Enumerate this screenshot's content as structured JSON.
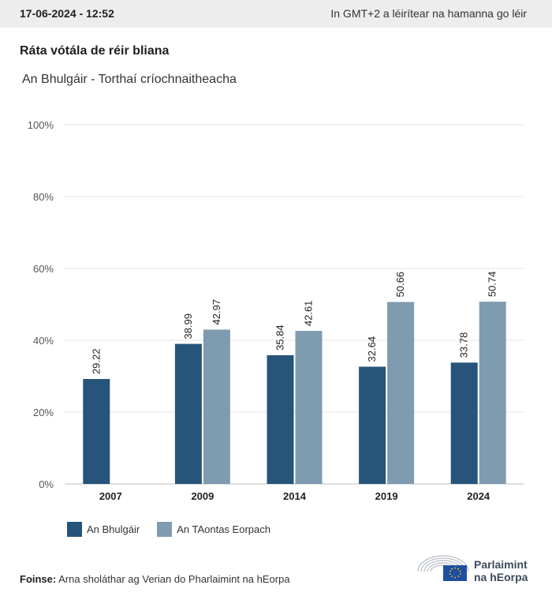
{
  "header": {
    "date": "17-06-2024 - 12:52",
    "timezone_note": "In GMT+2 a léirítear na hamanna go léir"
  },
  "title": "Ráta vótála de réir bliana",
  "subtitle": "An Bhulgáir - Torthaí críochnaitheacha",
  "chart_data": {
    "type": "bar",
    "categories": [
      "2007",
      "2009",
      "2014",
      "2019",
      "2024"
    ],
    "series": [
      {
        "name": "An Bhulgáir",
        "color": "#26547a",
        "values": [
          29.22,
          38.99,
          35.84,
          32.64,
          33.78
        ]
      },
      {
        "name": "An TAontas Eorpach",
        "color": "#7e9bb0",
        "values": [
          null,
          42.97,
          42.61,
          50.66,
          50.74
        ]
      }
    ],
    "ylim": [
      0,
      100
    ],
    "yticks": [
      "0%",
      "20%",
      "40%",
      "60%",
      "80%",
      "100%"
    ],
    "ytick_values": [
      0,
      20,
      40,
      60,
      80,
      100
    ],
    "grid": true,
    "legend_position": "bottom-left",
    "data_labels": true
  },
  "legend": {
    "item1": "An Bhulgáir",
    "item2": "An TAontas Eorpach",
    "color1": "#26547a",
    "color2": "#7e9bb0"
  },
  "source": {
    "label": "Foinse:",
    "text": "Arna sholáthar ag Verian do Pharlaimint na hEorpa"
  },
  "logo": {
    "line1": "Parlaimint",
    "line2": "na hEorpa"
  }
}
